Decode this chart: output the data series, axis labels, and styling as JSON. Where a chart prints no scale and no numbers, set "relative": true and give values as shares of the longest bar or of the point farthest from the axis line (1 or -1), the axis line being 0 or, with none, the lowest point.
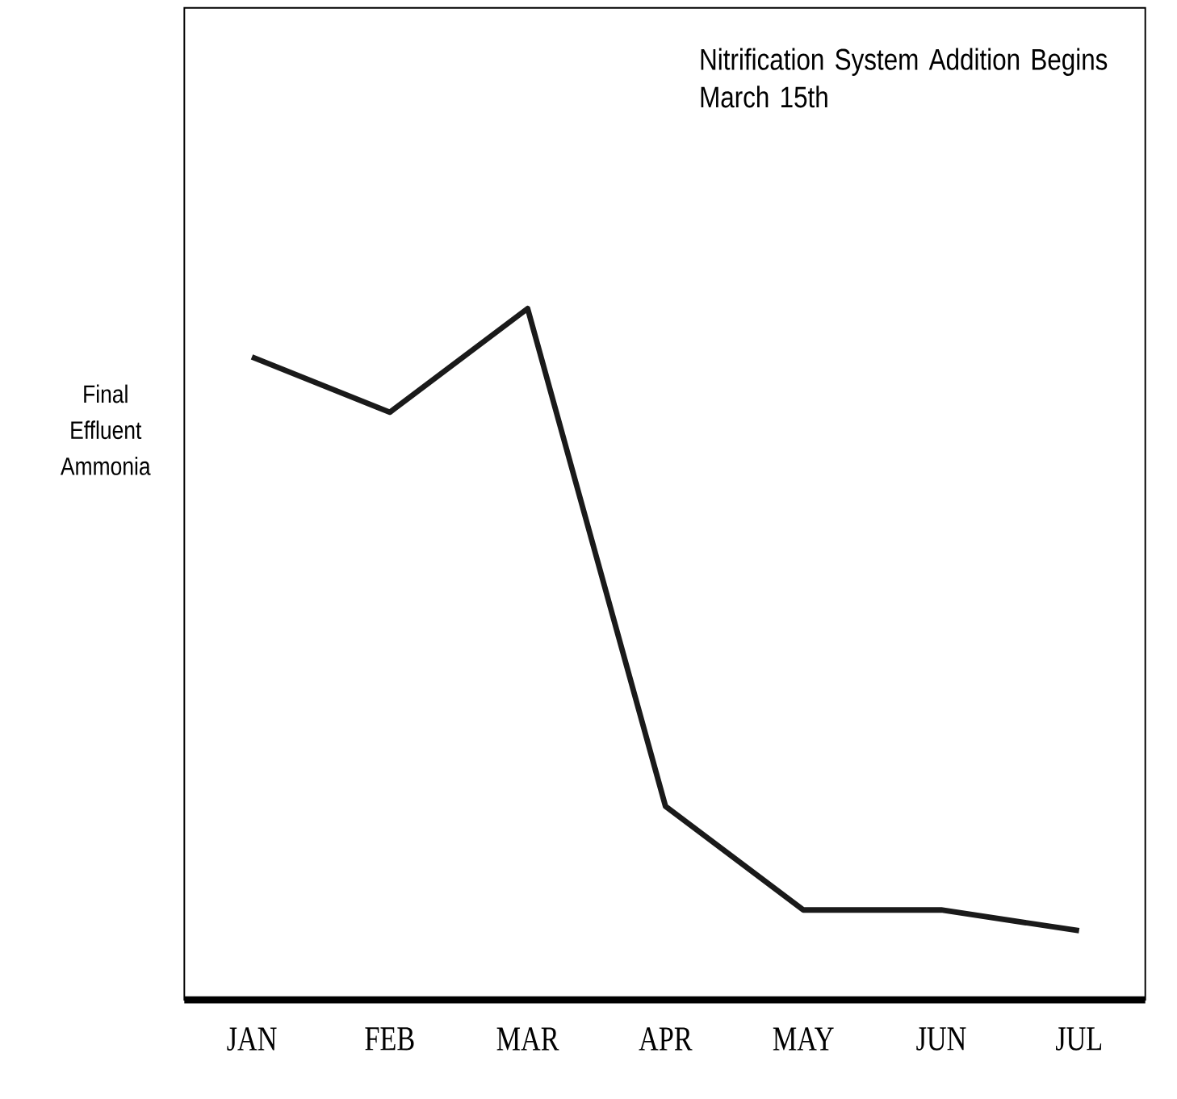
{
  "chart_data": {
    "type": "line",
    "relative": true,
    "categories": [
      "JAN",
      "FEB",
      "MAR",
      "APR",
      "MAY",
      "JUN",
      "JUL"
    ],
    "values": [
      0.93,
      0.85,
      1,
      0.28,
      0.13,
      0.13,
      0.1
    ],
    "color": "#1a1a1a",
    "ylabel": "Final Effluent Ammonia",
    "annotations": [
      "Nitrification System Addition Begins March 15th"
    ]
  }
}
